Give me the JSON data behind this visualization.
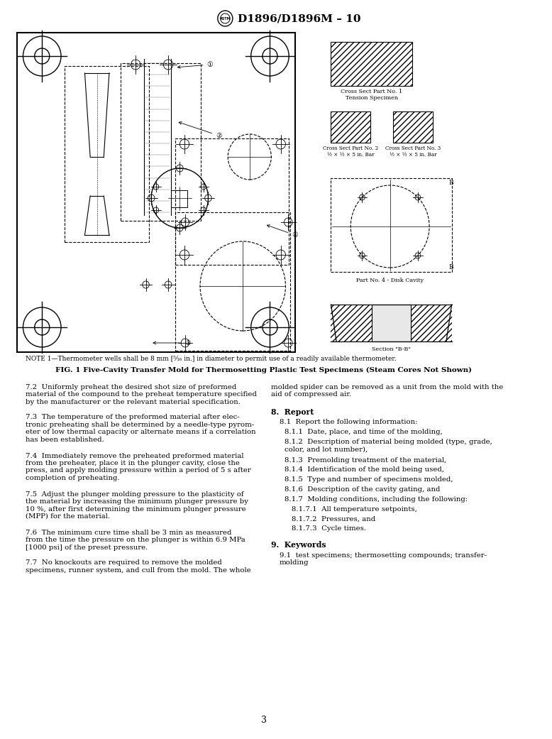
{
  "page_width": 7.78,
  "page_height": 10.41,
  "bg_color": "#ffffff",
  "header_text": "D1896/D1896M – 10",
  "note_text": "NOTE 1—Thermometer wells shall be 8 mm [⁵⁄₁₆ in.] in diameter to permit use of a readily available thermometer.",
  "fig_caption_bold": "FIG. 1 Five-Cavity Transfer Mold for Thermosetting Plastic Test Specimens (Steam Cores Not Shown)",
  "section_labels": [
    "Cross Sect Part No. 1\nTension Specimen",
    "Cross Sect Part No. 2\n½ × ½ × 5 in. Bar",
    "Cross Sect Part No. 3\n½ × ½ × 5 in. Bar",
    "Part No. 4 - Disk Cavity",
    "Section \"B-B\""
  ],
  "body_text_left": [
    "7.2  Uniformly preheat the desired shot size of preformed\nmaterial of the compound to the preheat temperature specified\nby the manufacturer or the relevant material specification.",
    "7.3  The temperature of the preformed material after elec-\ntronic preheating shall be determined by a needle-type pyrom-\neter of low thermal capacity or alternate means if a correlation\nhas been established.",
    "7.4  Immediately remove the preheated preformed material\nfrom the preheater, place it in the plunger cavity, close the\npress, and apply molding pressure within a period of 5 s after\ncompletion of preheating.",
    "7.5  Adjust the plunger molding pressure to the plasticity of\nthe material by increasing the minimum plunger pressure by\n10 %, after first determining the minimum plunger pressure\n(MPP) for the material.",
    "7.6  The minimum cure time shall be 3 min as measured\nfrom the time the pressure on the plunger is within 6.9 MPa\n[1000 psi] of the preset pressure.",
    "7.7  No knockouts are required to remove the molded\nspecimens, runner system, and cull from the mold. The whole"
  ],
  "body_text_right": [
    {
      "text": "molded spider can be removed as a unit from the mold with the\naid of compressed air.",
      "indent": 0,
      "bold": false,
      "extra_before": 0
    },
    {
      "text": "8.  Report",
      "indent": 0,
      "bold": true,
      "extra_before": 8
    },
    {
      "text": "8.1  Report the following information:",
      "indent": 12,
      "bold": false,
      "extra_before": 2
    },
    {
      "text": "8.1.1  Date, place, and time of the molding,",
      "indent": 20,
      "bold": false,
      "extra_before": 0
    },
    {
      "text": "8.1.2  Description of material being molded (type, grade,\ncolor, and lot number),",
      "indent": 20,
      "bold": false,
      "extra_before": 0
    },
    {
      "text": "8.1.3  Premolding treatment of the material,",
      "indent": 20,
      "bold": false,
      "extra_before": 0
    },
    {
      "text": "8.1.4  Identification of the mold being used,",
      "indent": 20,
      "bold": false,
      "extra_before": 0
    },
    {
      "text": "8.1.5  Type and number of specimens molded,",
      "indent": 20,
      "bold": false,
      "extra_before": 0
    },
    {
      "text": "8.1.6  Description of the cavity gating, and",
      "indent": 20,
      "bold": false,
      "extra_before": 0
    },
    {
      "text": "8.1.7  Molding conditions, including the following:",
      "indent": 20,
      "bold": false,
      "extra_before": 0
    },
    {
      "text": "8.1.7.1  All temperature setpoints,",
      "indent": 30,
      "bold": false,
      "extra_before": 0
    },
    {
      "text": "8.1.7.2  Pressures, and",
      "indent": 30,
      "bold": false,
      "extra_before": 0
    },
    {
      "text": "8.1.7.3  Cycle times.",
      "indent": 30,
      "bold": false,
      "extra_before": 0
    },
    {
      "text": "9.  Keywords",
      "indent": 0,
      "bold": true,
      "extra_before": 8
    },
    {
      "text": "9.1  test specimens; thermosetting compounds; transfer-\nmolding",
      "indent": 12,
      "bold": false,
      "extra_before": 2
    }
  ],
  "page_number": "3"
}
